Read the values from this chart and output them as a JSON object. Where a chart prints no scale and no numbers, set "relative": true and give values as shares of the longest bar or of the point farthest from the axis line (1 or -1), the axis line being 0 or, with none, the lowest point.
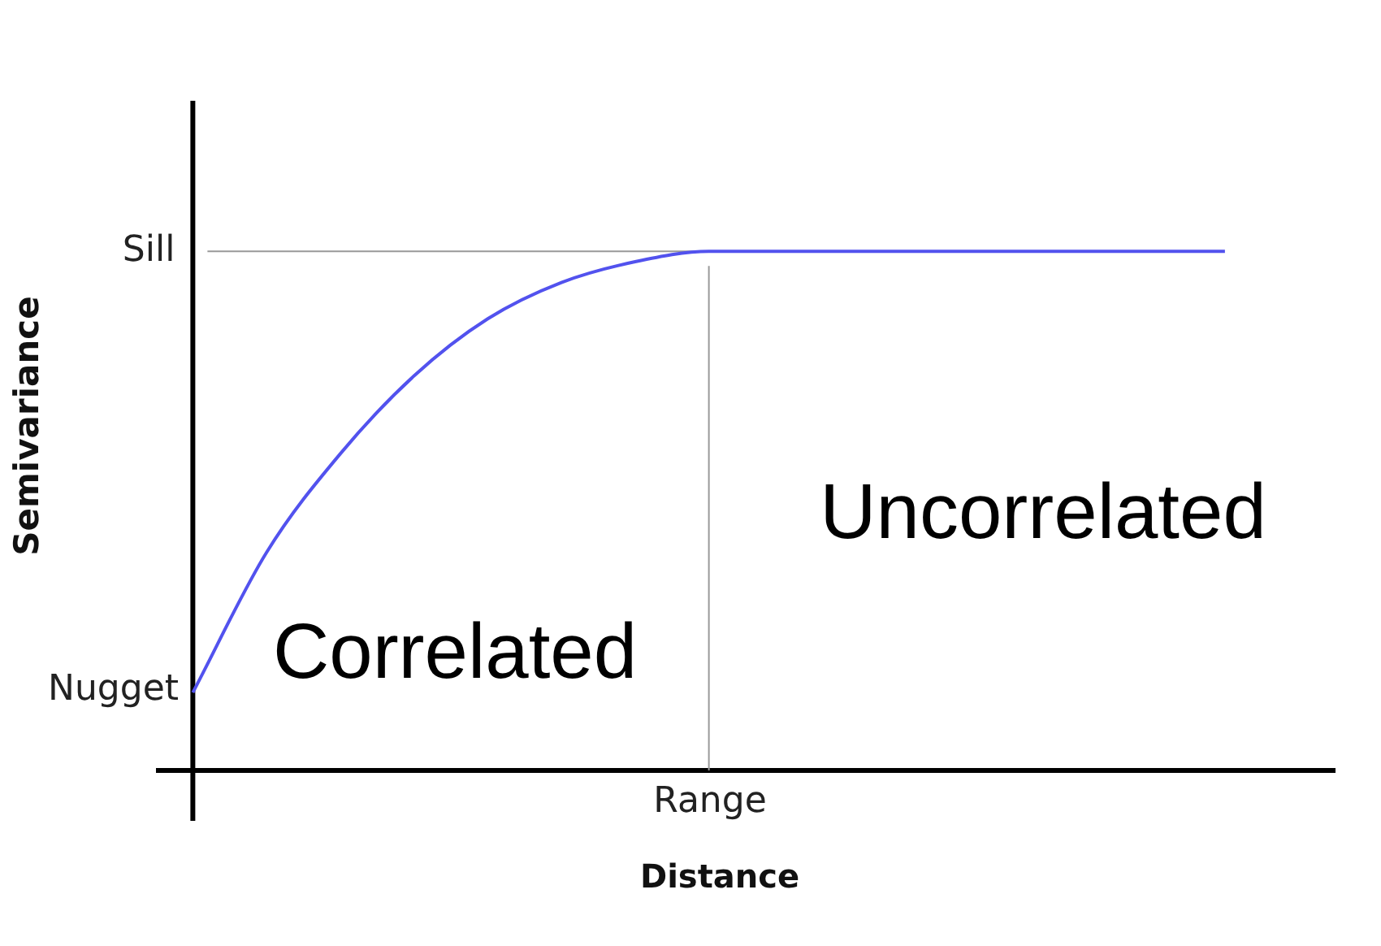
{
  "chart_data": {
    "type": "line",
    "xlabel": "Distance",
    "ylabel": "Semivariance",
    "relative": true,
    "categories": [
      null,
      null,
      null,
      null,
      null,
      null,
      null,
      null,
      null,
      null,
      null,
      null,
      null,
      null,
      null,
      null
    ],
    "series": [
      {
        "color": "#5252ee",
        "values": [
          0.15,
          0.42,
          0.61,
          0.76,
          0.87,
          0.94,
          0.98,
          1,
          1,
          1,
          1,
          1,
          1,
          1,
          1,
          null
        ]
      }
    ],
    "ref_lines": [
      {
        "axis": "y",
        "value": 1,
        "label": "Sill",
        "color": "#999999"
      }
    ],
    "annotations": [
      "Nugget",
      "Range",
      "Correlated",
      "Uncorrelated"
    ]
  }
}
